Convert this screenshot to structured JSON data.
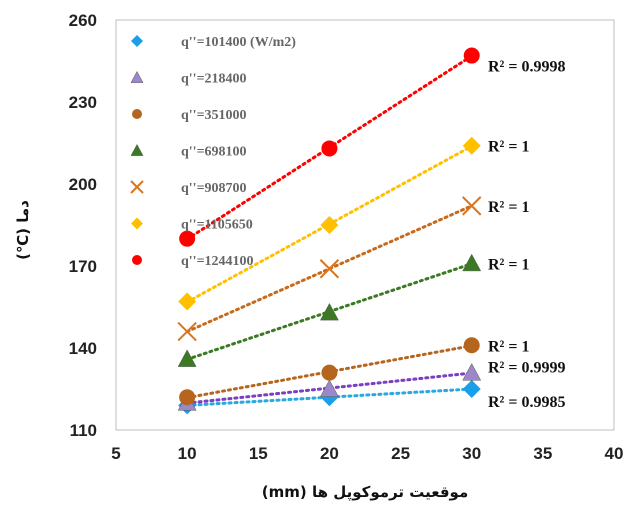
{
  "chart_data": {
    "type": "scatter",
    "xlabel": "موقعیت ترموکوپل ها (mm)",
    "ylabel": "دما (℃)",
    "xlim": [
      5,
      40
    ],
    "ylim": [
      110,
      260
    ],
    "xticks": [
      5,
      10,
      15,
      20,
      25,
      30,
      35,
      40
    ],
    "yticks": [
      110,
      140,
      170,
      200,
      230,
      260
    ],
    "grid": false,
    "legend_position": "top-left inside",
    "trendline": "linear, dotted",
    "series": [
      {
        "name": "q''=101400 (W/m2)",
        "marker": "diamond",
        "color": "#1aa0e8",
        "trend_color": "#29a8e0",
        "x": [
          10,
          20,
          30
        ],
        "y": [
          119,
          122,
          125
        ],
        "r2": "R² = 0.9985"
      },
      {
        "name": "q''=218400",
        "marker": "triangle",
        "color": "#9b87c9",
        "trend_color": "#7a3fc0",
        "x": [
          10,
          20,
          30
        ],
        "y": [
          120,
          125,
          131
        ],
        "r2": "R² = 0.9999"
      },
      {
        "name": "q''=351000",
        "marker": "circle",
        "color": "#b5651d",
        "trend_color": "#b5651d",
        "x": [
          10,
          20,
          30
        ],
        "y": [
          122,
          131,
          141
        ],
        "r2": "R² = 1"
      },
      {
        "name": "q''=698100",
        "marker": "triangle",
        "color": "#3b7a22",
        "trend_color": "#3b7a22",
        "x": [
          10,
          20,
          30
        ],
        "y": [
          136,
          153,
          171
        ],
        "r2": "R² = 1"
      },
      {
        "name": "q''=908700",
        "marker": "cross",
        "color": "#d9761e",
        "trend_color": "#c76a1c",
        "x": [
          10,
          20,
          30
        ],
        "y": [
          146,
          169,
          192
        ],
        "r2": "R² = 1"
      },
      {
        "name": "q''=1105650",
        "marker": "diamond",
        "color": "#ffc000",
        "trend_color": "#ffc000",
        "x": [
          10,
          20,
          30
        ],
        "y": [
          157,
          185,
          214
        ],
        "r2": "R² = 1"
      },
      {
        "name": "q''=1244100",
        "marker": "circle",
        "color": "#ff0000",
        "trend_color": "#ff0000",
        "x": [
          10,
          20,
          30
        ],
        "y": [
          180,
          213,
          247
        ],
        "r2": "R² = 0.9998"
      }
    ]
  }
}
